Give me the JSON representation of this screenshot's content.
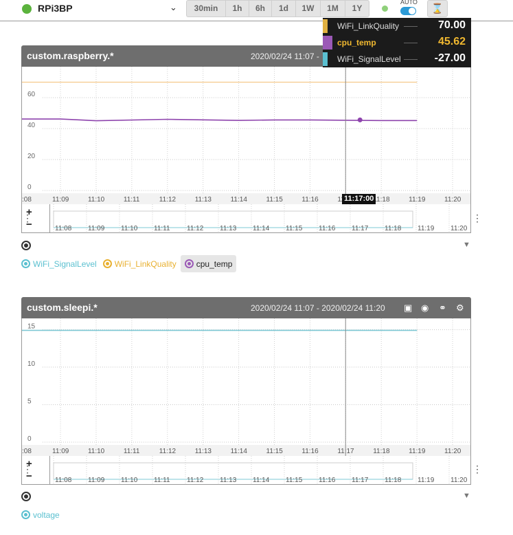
{
  "device": {
    "name": "RPi3BP",
    "status_color": "#5bb33d"
  },
  "time_ranges": [
    "30min",
    "1h",
    "6h",
    "1d",
    "1W",
    "1M",
    "1Y"
  ],
  "auto_label": "AUTO",
  "auto_enabled": true,
  "icons": {
    "device_chevron": "chevron-down-icon",
    "hourglass": "hourglass-icon",
    "zoom_in": "plus-icon",
    "zoom_out": "minus-icon",
    "menu": "vertical-dots-icon",
    "target": "target-icon",
    "caret": "caret-down-icon",
    "fullscreen": "fullscreen-icon",
    "camera": "camera-icon",
    "share": "share-icon",
    "settings": "gear-icon"
  },
  "tooltip": {
    "time": "11:17:00",
    "rows": [
      {
        "name": "WiFi_LinkQuality",
        "value": "70.00",
        "color": "#e0b040"
      },
      {
        "name": "cpu_temp",
        "value": "45.62",
        "color": "#9b59b6",
        "highlighted_color": "#f0b830"
      },
      {
        "name": "WiFi_SignalLevel",
        "value": "-27.00",
        "color": "#5bc0d0"
      }
    ]
  },
  "panels": [
    {
      "title": "custom.raspberry.*",
      "range": "2020/02/24 11:07 -",
      "legend": [
        {
          "name": "WiFi_SignalLevel",
          "color": "#5bc0d0",
          "active": false
        },
        {
          "name": "WiFi_LinkQuality",
          "color": "#e8b030",
          "active": false
        },
        {
          "name": "cpu_temp",
          "color": "#9b59b6",
          "active": true
        }
      ]
    },
    {
      "title": "custom.sleepi.*",
      "range": "2020/02/24 11:07 - 2020/02/24 11:20",
      "legend": [
        {
          "name": "voltage",
          "color": "#5bc0d0",
          "active": true
        }
      ]
    }
  ],
  "chart_data": [
    {
      "type": "line",
      "y_ticks": [
        0,
        20,
        40,
        60
      ],
      "x_ticks": [
        ":08",
        "11:09",
        "11:10",
        "11:11",
        "11:12",
        "11:13",
        "11:14",
        "11:15",
        "11:16",
        "11:17",
        "11:18",
        "11:19",
        "11:20"
      ],
      "overview_ticks": [
        "11:08",
        "11:09",
        "11:10",
        "11:11",
        "11:12",
        "11:13",
        "11:14",
        "11:15",
        "11:16",
        "11:17",
        "11:18",
        "11:19",
        "11:20"
      ],
      "x": [
        11.0667,
        11.15,
        11.1667,
        11.2,
        11.2333,
        11.25,
        11.2667,
        11.3,
        11.3167
      ],
      "series": [
        {
          "name": "WiFi_LinkQuality",
          "color": "#f5c98a",
          "values": [
            70,
            70,
            70,
            70,
            70,
            70,
            70,
            70,
            70
          ]
        },
        {
          "name": "cpu_temp",
          "color": "#8e44ad",
          "values": [
            46.2,
            46.2,
            45.1,
            46.0,
            45.3,
            45.6,
            45.6,
            45.2,
            45.2
          ]
        }
      ],
      "cursor_x": 11.2833,
      "cursor_value": 45.62,
      "ylim": [
        0,
        80
      ]
    },
    {
      "type": "line",
      "y_ticks": [
        0,
        5,
        10,
        15
      ],
      "x_ticks": [
        ":08",
        "11:09",
        "11:10",
        "11:11",
        "11:12",
        "11:13",
        "11:14",
        "11:15",
        "11:16",
        "11:17",
        "11:18",
        "11:19",
        "11:20"
      ],
      "overview_ticks": [
        "11:08",
        "11:09",
        "11:10",
        "11:11",
        "11:12",
        "11:13",
        "11:14",
        "11:15",
        "11:16",
        "11:17",
        "11:18",
        "11:19",
        "11:20"
      ],
      "x": [
        11.0667,
        11.3167
      ],
      "series": [
        {
          "name": "voltage",
          "color": "#7ec8d4",
          "values": [
            14.9,
            14.9
          ]
        }
      ],
      "cursor_x": 11.2833,
      "ylim": [
        0,
        16.5
      ]
    }
  ]
}
